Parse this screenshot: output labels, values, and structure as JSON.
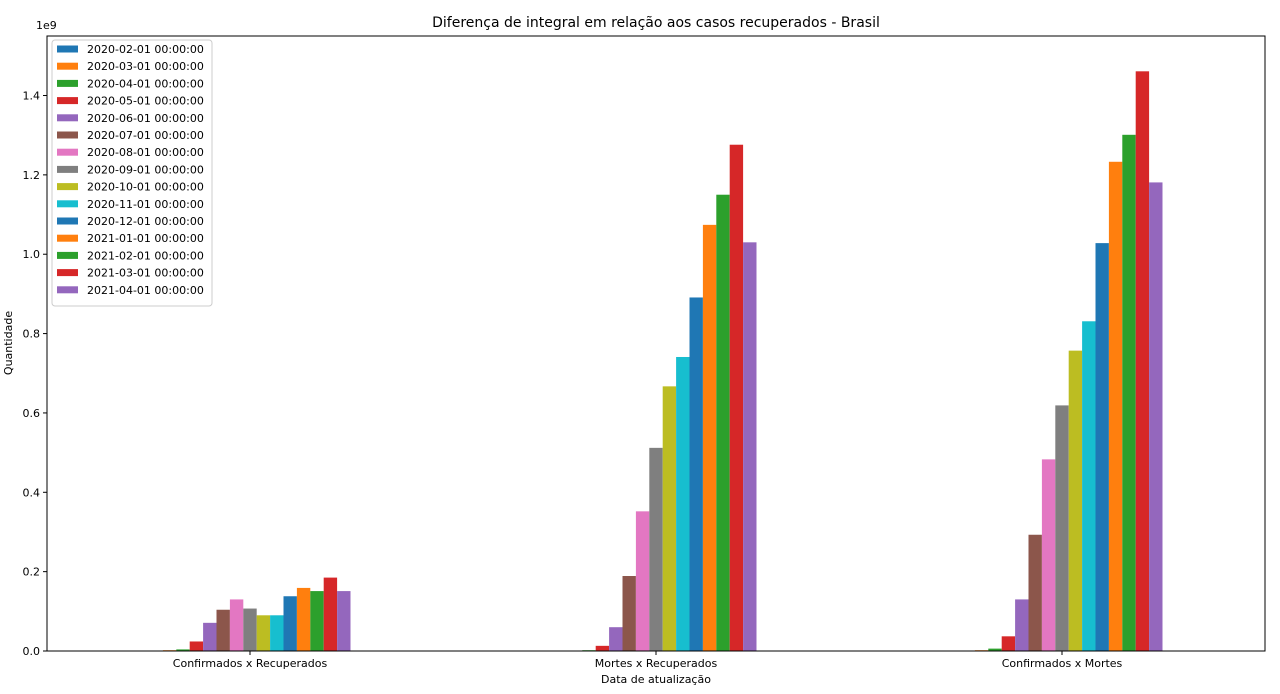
{
  "chart_data": {
    "type": "bar",
    "title": "Diferença de integral em relação aos casos recuperados - Brasil",
    "xlabel": "Data de atualização",
    "ylabel": "Quantidade",
    "scale_note": "1e9",
    "ylim": [
      0,
      1.55
    ],
    "yticks": [
      "0.0",
      "0.2",
      "0.4",
      "0.6",
      "0.8",
      "1.0",
      "1.2",
      "1.4"
    ],
    "categories": [
      "Confirmados x Recuperados",
      "Mortes x Recuperados",
      "Confirmados x Mortes"
    ],
    "legend_position": "upper-left",
    "grid": false,
    "series": [
      {
        "name": "2020-02-01 00:00:00",
        "color": "#1f77b4",
        "values": [
          0.0,
          0.0,
          0.0
        ]
      },
      {
        "name": "2020-03-01 00:00:00",
        "color": "#ff7f0e",
        "values": [
          0.002,
          0.0005,
          0.002
        ]
      },
      {
        "name": "2020-04-01 00:00:00",
        "color": "#2ca02c",
        "values": [
          0.004,
          0.002,
          0.006
        ]
      },
      {
        "name": "2020-05-01 00:00:00",
        "color": "#d62728",
        "values": [
          0.024,
          0.013,
          0.037
        ]
      },
      {
        "name": "2020-06-01 00:00:00",
        "color": "#9467bd",
        "values": [
          0.071,
          0.06,
          0.13
        ]
      },
      {
        "name": "2020-07-01 00:00:00",
        "color": "#8c564b",
        "values": [
          0.104,
          0.189,
          0.293
        ]
      },
      {
        "name": "2020-08-01 00:00:00",
        "color": "#e377c2",
        "values": [
          0.13,
          0.352,
          0.483
        ]
      },
      {
        "name": "2020-09-01 00:00:00",
        "color": "#7f7f7f",
        "values": [
          0.107,
          0.512,
          0.619
        ]
      },
      {
        "name": "2020-10-01 00:00:00",
        "color": "#bcbd22",
        "values": [
          0.09,
          0.667,
          0.757
        ]
      },
      {
        "name": "2020-11-01 00:00:00",
        "color": "#17becf",
        "values": [
          0.09,
          0.741,
          0.831
        ]
      },
      {
        "name": "2020-12-01 00:00:00",
        "color": "#1f77b4",
        "values": [
          0.138,
          0.891,
          1.028
        ]
      },
      {
        "name": "2021-01-01 00:00:00",
        "color": "#ff7f0e",
        "values": [
          0.159,
          1.074,
          1.233
        ]
      },
      {
        "name": "2021-02-01 00:00:00",
        "color": "#2ca02c",
        "values": [
          0.151,
          1.15,
          1.301
        ]
      },
      {
        "name": "2021-03-01 00:00:00",
        "color": "#d62728",
        "values": [
          0.185,
          1.276,
          1.461
        ]
      },
      {
        "name": "2021-04-01 00:00:00",
        "color": "#9467bd",
        "values": [
          0.151,
          1.03,
          1.181
        ]
      }
    ]
  }
}
